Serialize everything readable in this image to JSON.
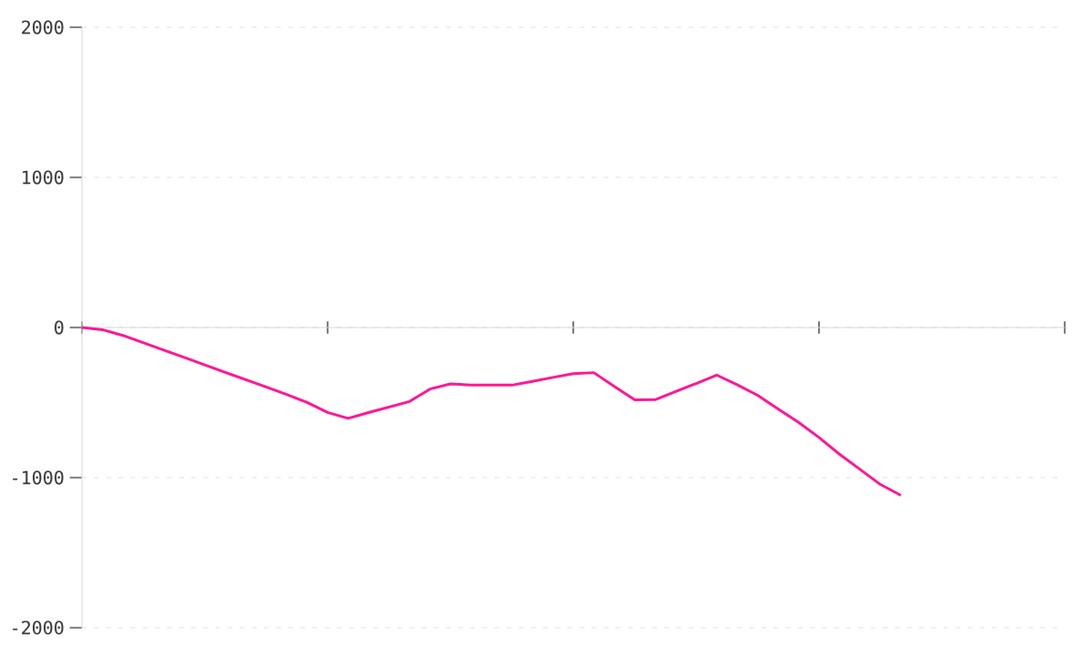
{
  "chart_data": {
    "type": "line",
    "categories": [
      null,
      null,
      null,
      null,
      null,
      null,
      null,
      null,
      null,
      null,
      null,
      null,
      null,
      null,
      null,
      null,
      null,
      null,
      null,
      null,
      null,
      null,
      null,
      null,
      null,
      null,
      null,
      null,
      null,
      null,
      null,
      null,
      null,
      null,
      null,
      null,
      null,
      null,
      null,
      null,
      null,
      null,
      null,
      null,
      null,
      null,
      null,
      null,
      null
    ],
    "values": [
      0,
      -15,
      -53,
      -102,
      -151,
      -200,
      -250,
      -299,
      -348,
      -397,
      -446,
      -499,
      -566,
      -605,
      -567,
      -530,
      -493,
      -410,
      -376,
      -383,
      -384,
      -384,
      -359,
      -333,
      -308,
      -301,
      -392,
      -482,
      -481,
      -427,
      -373,
      -317,
      -381,
      -452,
      -542,
      -632,
      -733,
      -844,
      -945,
      -1046,
      -1118,
      null,
      null,
      null,
      null,
      null,
      null,
      null,
      null
    ],
    "color": "#ff1493",
    "ylim": [
      -2000,
      2000
    ],
    "yticks": [
      -2000,
      -1000,
      0,
      1000,
      2000
    ],
    "tick_labels": "y",
    "grid": "y",
    "marker": "none",
    "line_style": "solid"
  }
}
